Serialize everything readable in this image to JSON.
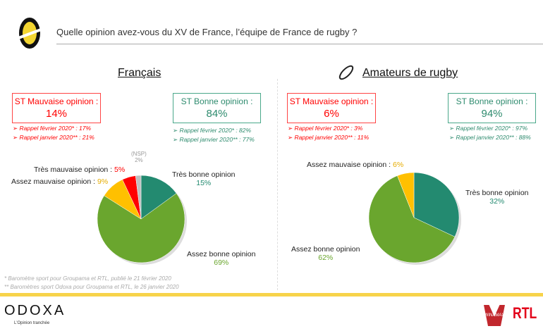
{
  "header": {
    "title": "Quelle opinion avez-vous du XV de France, l’équipe de France de rugby ?"
  },
  "colors": {
    "tres_bonne": "#238a70",
    "assez_bonne": "#6aa62e",
    "assez_mauvaise": "#ffc000",
    "tres_mauvaise": "#ff0000",
    "nsp": "#bfbfbf"
  },
  "panels": [
    {
      "title": "Français",
      "bad": {
        "label": "ST Mauvaise opinion :",
        "value": "14%",
        "notes": [
          "Rappel février 2020* : 17%",
          "Rappel janvier 2020** : 21%"
        ]
      },
      "good": {
        "label": "ST Bonne opinion :",
        "value": "84%",
        "notes": [
          "Rappel février 2020* : 82%",
          "Rappel janvier 2020** : 77%"
        ]
      }
    },
    {
      "title": "Amateurs de rugby",
      "bad": {
        "label": "ST Mauvaise opinion :",
        "value": "6%",
        "notes": [
          "Rappel février 2020* : 3%",
          "Rappel janvier 2020** : 11%"
        ]
      },
      "good": {
        "label": "ST Bonne opinion :",
        "value": "94%",
        "notes": [
          "Rappel février 2020* : 97%",
          "Rappel janvier 2020** : 88%"
        ]
      }
    }
  ],
  "chart_data": [
    {
      "type": "pie",
      "title": "Français",
      "categories": [
        "Très bonne opinion",
        "Assez bonne opinion",
        "Assez mauvaise opinion",
        "Très mauvaise opinion",
        "(NSP)"
      ],
      "values": [
        15,
        69,
        9,
        5,
        2
      ],
      "labels": [
        "15%",
        "69%",
        "9%",
        "5%",
        "2%"
      ]
    },
    {
      "type": "pie",
      "title": "Amateurs de rugby",
      "categories": [
        "Très bonne opinion",
        "Assez bonne opinion",
        "Assez mauvaise opinion"
      ],
      "values": [
        32,
        62,
        6
      ],
      "labels": [
        "32%",
        "62%",
        "6%"
      ]
    }
  ],
  "footnotes": [
    "* Baromètre sport pour Groupama et RTL, publié le 21 février 2020",
    "** Baromètres sport Odoxa pour Groupama et RTL, le 26 janvier 2020"
  ],
  "footer": {
    "brand": "ODOXA",
    "tagline": "L'Opinion tranchée",
    "partner1": "WINAMAX",
    "partner2": "RTL"
  }
}
